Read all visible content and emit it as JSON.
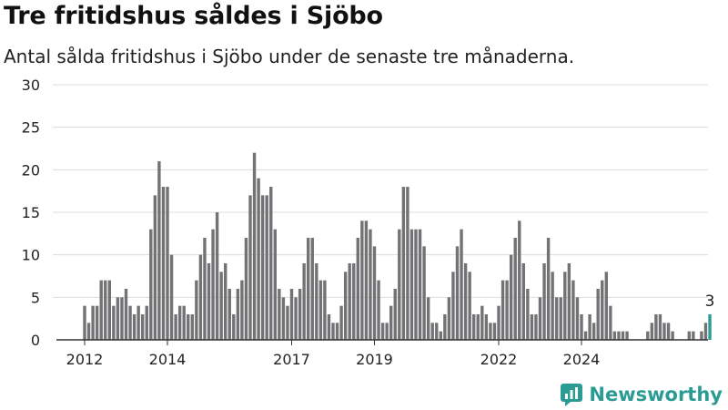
{
  "title": "Tre fritidshus såldes i Sjöbo",
  "subtitle": "Antal sålda fritidshus i Sjöbo under de senaste tre månaderna.",
  "brand": "Newsworthy",
  "colors": {
    "bar": "#737275",
    "highlight": "#2a9c94",
    "grid": "#dcdcdc",
    "axis": "#333333"
  },
  "chart_data": {
    "type": "bar",
    "title": "Tre fritidshus såldes i Sjöbo",
    "subtitle": "Antal sålda fritidshus i Sjöbo under de senaste tre månaderna.",
    "xlabel": "",
    "ylabel": "",
    "ylim": [
      0,
      30
    ],
    "yticks": [
      0,
      5,
      10,
      15,
      20,
      25,
      30
    ],
    "grid": true,
    "x_ticks": [
      {
        "label": "2012",
        "index": 0
      },
      {
        "label": "2014",
        "index": 20
      },
      {
        "label": "2017",
        "index": 50
      },
      {
        "label": "2019",
        "index": 70
      },
      {
        "label": "2022",
        "index": 100
      },
      {
        "label": "2024",
        "index": 120
      }
    ],
    "values": [
      4,
      2,
      4,
      4,
      7,
      7,
      7,
      4,
      5,
      5,
      6,
      4,
      3,
      4,
      3,
      4,
      13,
      17,
      21,
      18,
      18,
      10,
      3,
      4,
      4,
      3,
      3,
      7,
      10,
      12,
      9,
      13,
      15,
      8,
      9,
      6,
      3,
      6,
      7,
      12,
      17,
      22,
      19,
      17,
      17,
      18,
      13,
      6,
      5,
      4,
      6,
      5,
      6,
      9,
      12,
      12,
      9,
      7,
      7,
      3,
      2,
      2,
      4,
      8,
      9,
      9,
      12,
      14,
      14,
      13,
      11,
      7,
      2,
      2,
      4,
      6,
      13,
      18,
      18,
      13,
      13,
      13,
      11,
      5,
      2,
      2,
      1,
      3,
      5,
      8,
      11,
      13,
      9,
      8,
      3,
      3,
      4,
      3,
      2,
      2,
      4,
      7,
      7,
      10,
      12,
      14,
      9,
      6,
      3,
      3,
      5,
      9,
      12,
      8,
      5,
      5,
      8,
      9,
      7,
      5,
      3,
      1,
      3,
      2,
      6,
      7,
      8,
      4,
      1,
      1,
      1,
      1,
      0,
      0,
      0,
      0,
      1,
      2,
      3,
      3,
      2,
      2,
      1,
      0,
      0,
      0,
      1,
      1,
      0,
      1,
      2,
      3
    ],
    "highlight_last": true,
    "last_label": "3"
  }
}
